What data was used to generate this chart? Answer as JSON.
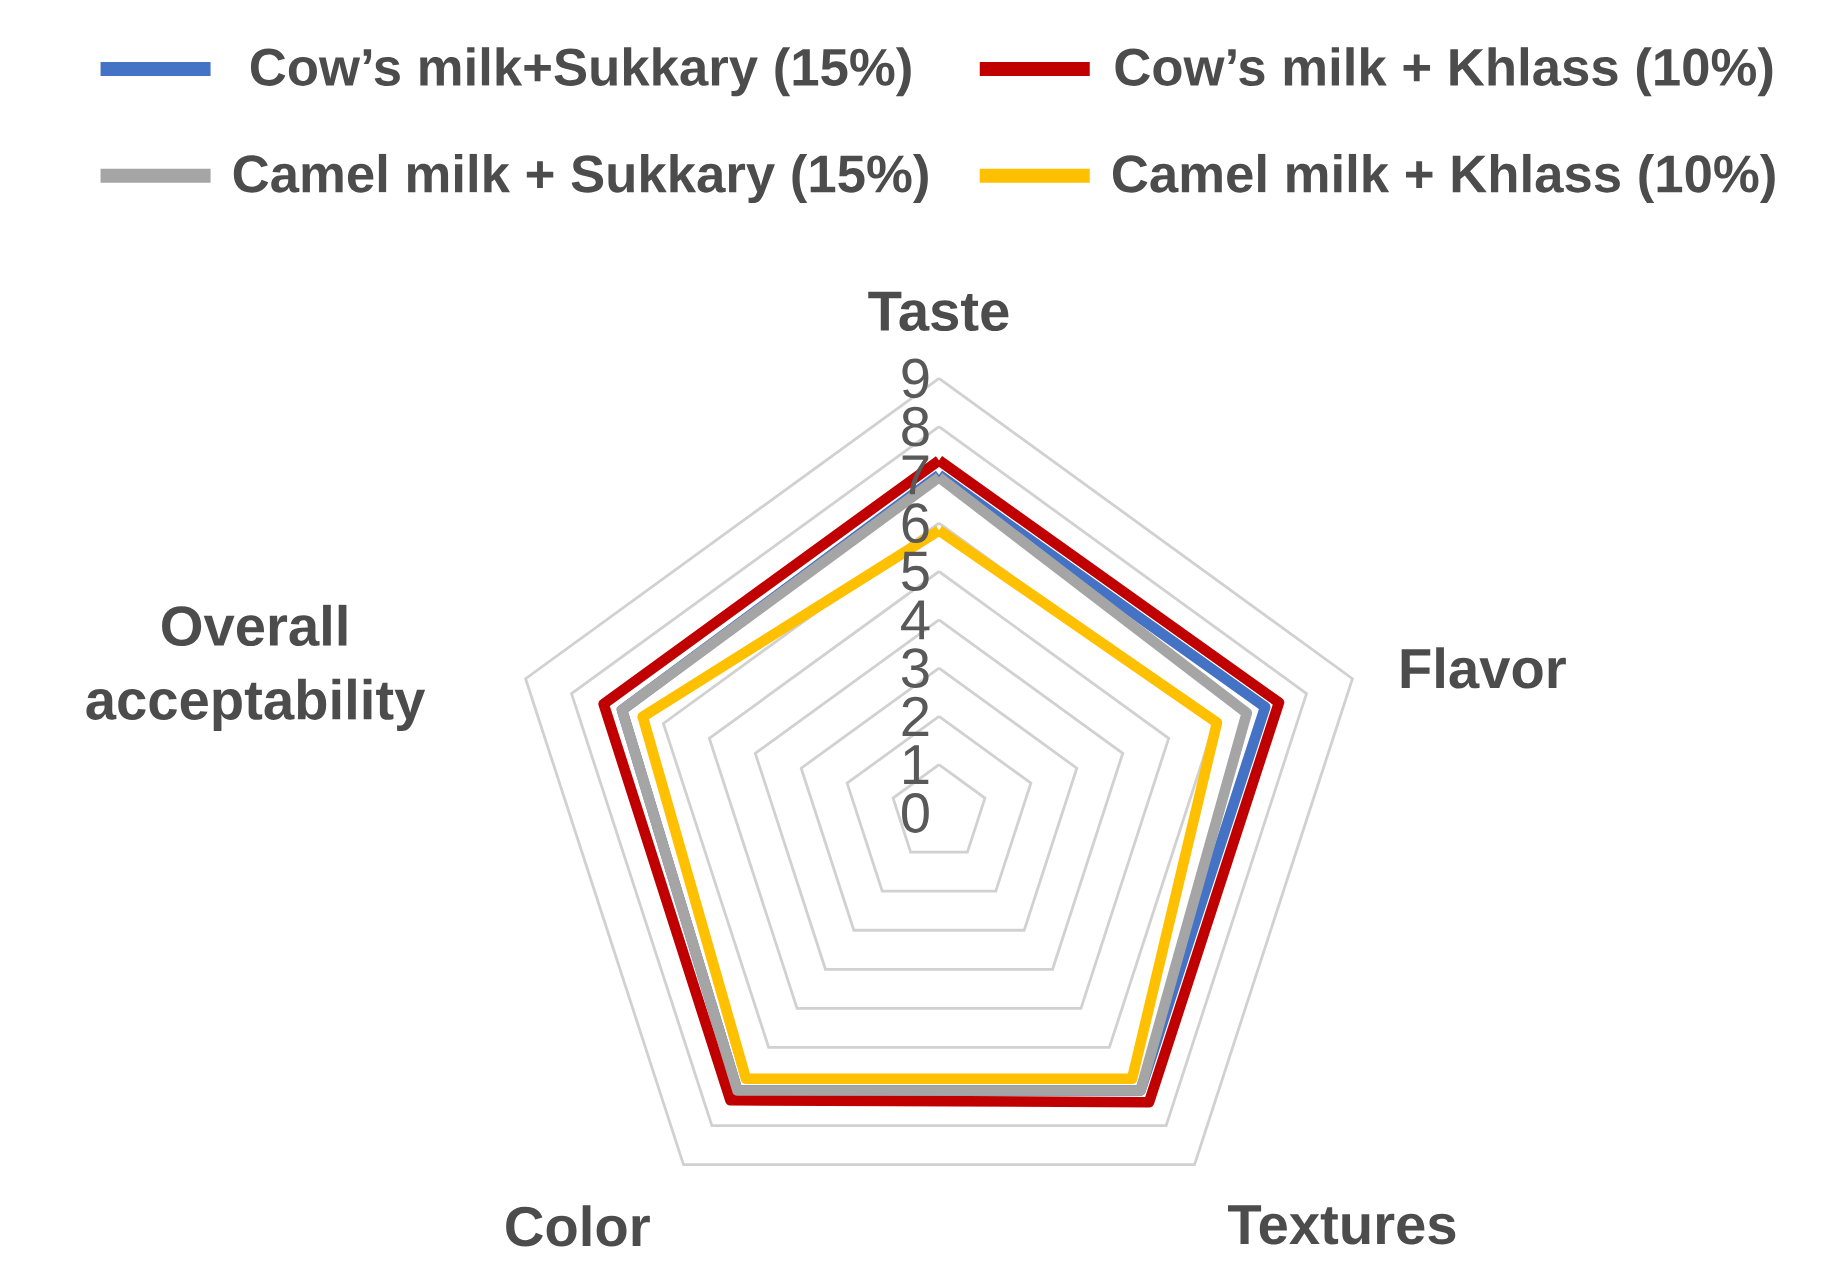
{
  "chart_data": {
    "type": "radar",
    "categories": [
      "Taste",
      "Flavor",
      "Textures",
      "Color",
      "Overall acceptability"
    ],
    "series": [
      {
        "name": "Cow’s milk+Sukkary (15%)",
        "color": "#4472c4",
        "values": [
          7.0,
          7.1,
          7.1,
          7.1,
          6.9
        ]
      },
      {
        "name": "Cow’s milk + Khlass (10%)",
        "color": "#c00000",
        "values": [
          7.3,
          7.4,
          7.4,
          7.35,
          7.3
        ]
      },
      {
        "name": "Camel milk + Sukkary (15%)",
        "color": "#a5a5a5",
        "values": [
          6.95,
          6.7,
          7.1,
          7.1,
          6.9
        ]
      },
      {
        "name": "Camel milk + Khlass (10%)",
        "color": "#ffc000",
        "values": [
          5.85,
          6.05,
          6.8,
          6.8,
          6.45
        ]
      }
    ],
    "ylim": [
      0,
      9
    ],
    "yticks": [
      0,
      1,
      2,
      3,
      4,
      5,
      6,
      7,
      8,
      9
    ],
    "grid": true,
    "legend": "top",
    "line_style": "solid"
  }
}
